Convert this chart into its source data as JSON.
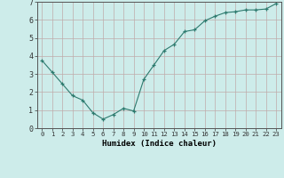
{
  "x": [
    0,
    1,
    2,
    3,
    4,
    5,
    6,
    7,
    8,
    9,
    10,
    11,
    12,
    13,
    14,
    15,
    16,
    17,
    18,
    19,
    20,
    21,
    22,
    23
  ],
  "y": [
    3.75,
    3.1,
    2.45,
    1.8,
    1.55,
    0.85,
    0.5,
    0.75,
    1.1,
    0.95,
    2.7,
    3.5,
    4.3,
    4.65,
    5.35,
    5.45,
    5.95,
    6.2,
    6.4,
    6.45,
    6.55,
    6.55,
    6.6,
    6.9
  ],
  "xlabel": "Humidex (Indice chaleur)",
  "line_color": "#2d7a6e",
  "marker": "+",
  "bg_color": "#cdecea",
  "grid_color": "#c0aaaa",
  "xlim": [
    -0.5,
    23.5
  ],
  "ylim": [
    0,
    7
  ],
  "yticks": [
    0,
    1,
    2,
    3,
    4,
    5,
    6,
    7
  ],
  "xticks": [
    0,
    1,
    2,
    3,
    4,
    5,
    6,
    7,
    8,
    9,
    10,
    11,
    12,
    13,
    14,
    15,
    16,
    17,
    18,
    19,
    20,
    21,
    22,
    23
  ]
}
